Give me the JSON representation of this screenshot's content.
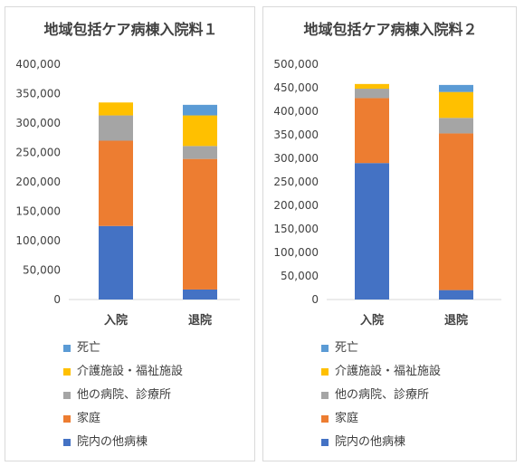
{
  "colors": {
    "text": "#404040",
    "axis_line": "#d9d9d9"
  },
  "chart_data": [
    {
      "type": "bar",
      "stacked": true,
      "title": "地域包括ケア病棟入院料１",
      "categories": [
        "入院",
        "退院"
      ],
      "ylim": [
        0,
        400000
      ],
      "yticks": [
        "0",
        "50,000",
        "100,000",
        "150,000",
        "200,000",
        "250,000",
        "300,000",
        "350,000",
        "400,000"
      ],
      "grid": false,
      "legend_position": "bottom",
      "series": [
        {
          "name": "院内の他病棟",
          "color": "#4472c4",
          "values": [
            125000,
            17000
          ]
        },
        {
          "name": "家庭",
          "color": "#ed7d31",
          "values": [
            145000,
            222000
          ]
        },
        {
          "name": "他の病院、診療所",
          "color": "#a5a5a5",
          "values": [
            43000,
            22000
          ]
        },
        {
          "name": "介護施設・福祉施設",
          "color": "#ffc000",
          "values": [
            22000,
            52000
          ]
        },
        {
          "name": "死亡",
          "color": "#5b9bd5",
          "values": [
            0,
            18000
          ]
        }
      ]
    },
    {
      "type": "bar",
      "stacked": true,
      "title": "地域包括ケア病棟入院料２",
      "categories": [
        "入院",
        "退院"
      ],
      "ylim": [
        0,
        500000
      ],
      "yticks": [
        "0",
        "50,000",
        "100,000",
        "150,000",
        "200,000",
        "250,000",
        "300,000",
        "350,000",
        "400,000",
        "450,000",
        "500,000"
      ],
      "grid": false,
      "legend_position": "bottom",
      "series": [
        {
          "name": "院内の他病棟",
          "color": "#4472c4",
          "values": [
            290000,
            20000
          ]
        },
        {
          "name": "家庭",
          "color": "#ed7d31",
          "values": [
            138000,
            333000
          ]
        },
        {
          "name": "他の病院、診療所",
          "color": "#a5a5a5",
          "values": [
            20000,
            33000
          ]
        },
        {
          "name": "介護施設・福祉施設",
          "color": "#ffc000",
          "values": [
            10000,
            55000
          ]
        },
        {
          "name": "死亡",
          "color": "#5b9bd5",
          "values": [
            0,
            15000
          ]
        }
      ]
    }
  ]
}
